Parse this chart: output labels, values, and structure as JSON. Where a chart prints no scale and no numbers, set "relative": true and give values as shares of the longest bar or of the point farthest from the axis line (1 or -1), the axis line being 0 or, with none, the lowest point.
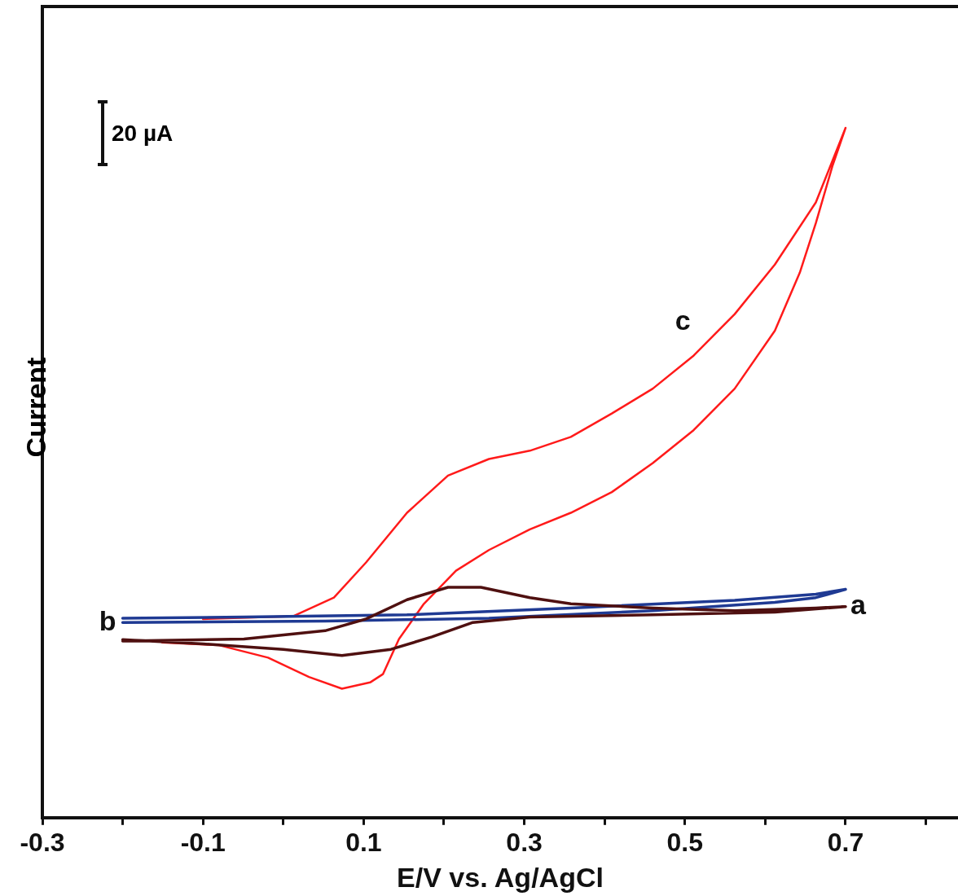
{
  "chart_data": {
    "type": "line",
    "xlabel": "E/V vs. Ag/AgCl",
    "ylabel": "Current",
    "relative": true,
    "legend": false,
    "grid": false,
    "marker": "none",
    "line_style": "solid",
    "xlim": [
      -0.3,
      0.84
    ],
    "xticks": [
      -0.3,
      {
        "value": -0.2,
        "label": null
      },
      -0.1,
      {
        "value": 0,
        "label": null
      },
      0.1,
      {
        "value": 0.2,
        "label": null
      },
      0.3,
      {
        "value": 0.4,
        "label": null
      },
      0.5,
      {
        "value": 0.6,
        "label": null
      },
      0.7,
      {
        "value": 0.8,
        "label": null
      }
    ],
    "annotations": [
      "20 µA"
    ],
    "series": [
      {
        "name": "a",
        "color": "#4f1010",
        "x": [
          -0.2,
          -0.049,
          0.052,
          0.103,
          0.154,
          0.205,
          0.246,
          0.307,
          0.358,
          0.46,
          0.562,
          0.663,
          0.7,
          0.612,
          0.46,
          0.307,
          0.236,
          0.185,
          0.134,
          0.073,
          0.0,
          -0.1,
          -0.2
        ],
        "values": [
          0.256,
          0.259,
          0.271,
          0.288,
          0.316,
          0.334,
          0.334,
          0.319,
          0.31,
          0.304,
          0.3,
          0.304,
          0.306,
          0.298,
          0.294,
          0.291,
          0.283,
          0.262,
          0.244,
          0.235,
          0.244,
          0.252,
          0.258
        ]
      },
      {
        "name": "b",
        "color": "#1f3a93",
        "x": [
          -0.2,
          0.052,
          0.256,
          0.46,
          0.612,
          0.663,
          0.7,
          0.663,
          0.562,
          0.358,
          0.154,
          -0.049,
          -0.2
        ],
        "values": [
          0.283,
          0.285,
          0.289,
          0.3,
          0.312,
          0.319,
          0.331,
          0.324,
          0.315,
          0.304,
          0.294,
          0.291,
          0.289
        ]
      },
      {
        "name": "c",
        "color": "#ff1a1a",
        "x": [
          -0.1,
          0.012,
          0.063,
          0.103,
          0.154,
          0.205,
          0.256,
          0.307,
          0.358,
          0.409,
          0.46,
          0.511,
          0.562,
          0.612,
          0.663,
          0.7,
          0.684,
          0.663,
          0.643,
          0.612,
          0.562,
          0.511,
          0.46,
          0.409,
          0.358,
          0.307,
          0.256,
          0.215,
          0.175,
          0.144,
          0.124,
          0.108,
          0.073,
          0.032,
          -0.019,
          -0.08,
          -0.151
        ],
        "values": [
          0.288,
          0.292,
          0.319,
          0.37,
          0.442,
          0.496,
          0.52,
          0.532,
          0.552,
          0.586,
          0.622,
          0.67,
          0.73,
          0.802,
          0.892,
          1.0,
          0.946,
          0.862,
          0.79,
          0.706,
          0.622,
          0.562,
          0.514,
          0.472,
          0.442,
          0.418,
          0.388,
          0.358,
          0.31,
          0.259,
          0.208,
          0.196,
          0.187,
          0.204,
          0.232,
          0.25,
          0.254
        ]
      }
    ]
  }
}
